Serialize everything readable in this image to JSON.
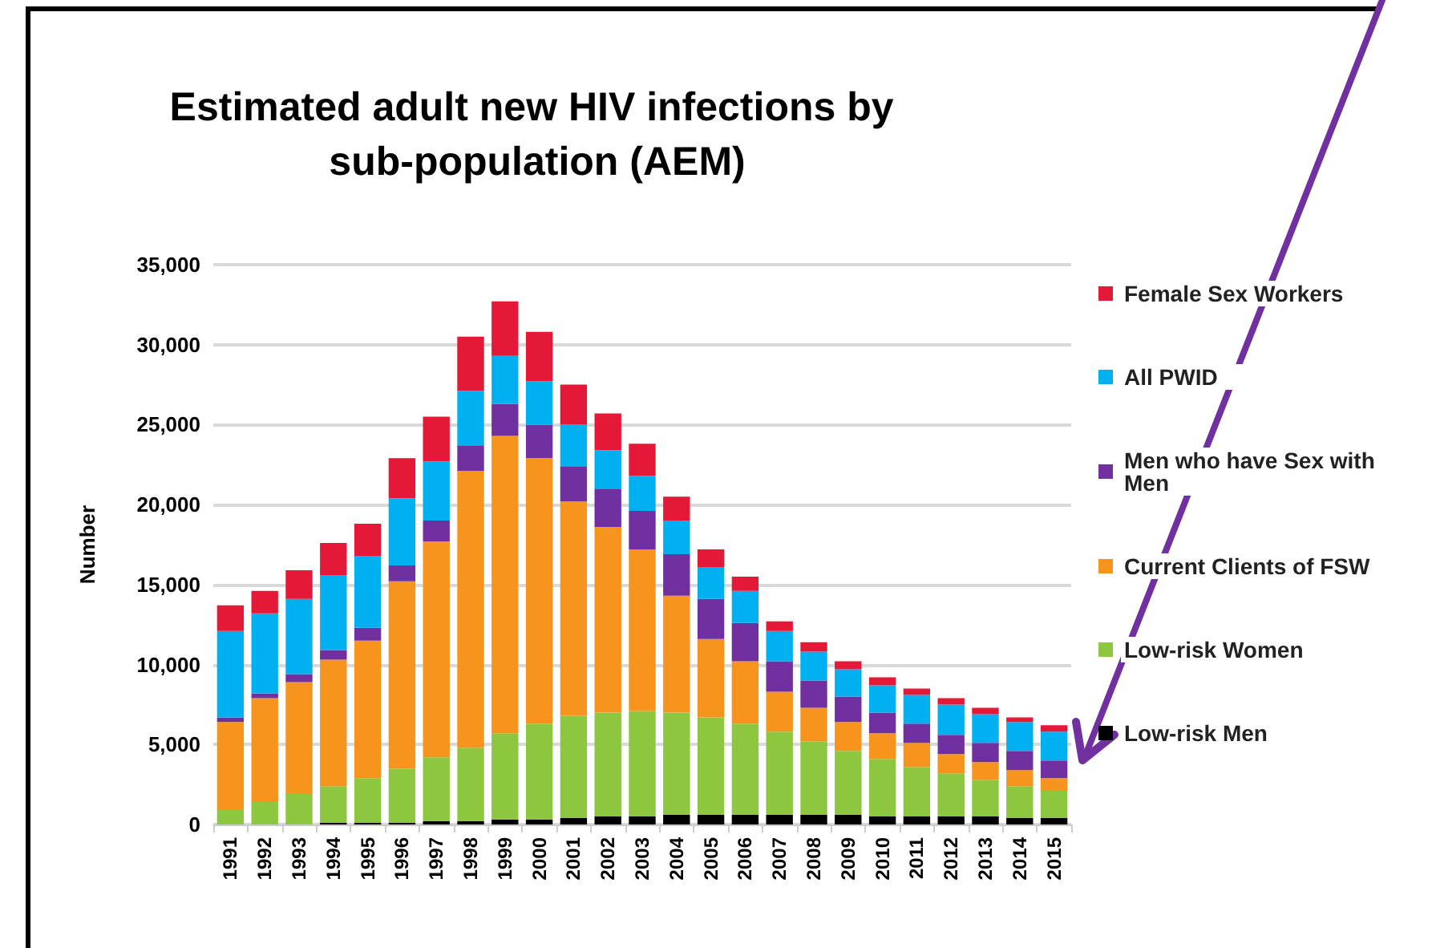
{
  "chart_data": {
    "type": "bar",
    "stacked": true,
    "title": "Estimated adult new HIV infections by sub-population (AEM)",
    "ylabel": "Number",
    "categories": [
      "1991",
      "1992",
      "1993",
      "1994",
      "1995",
      "1996",
      "1997",
      "1998",
      "1999",
      "2000",
      "2001",
      "2002",
      "2003",
      "2004",
      "2005",
      "2006",
      "2007",
      "2008",
      "2009",
      "2010",
      "2011",
      "2012",
      "2013",
      "2014",
      "2015"
    ],
    "series": [
      {
        "name": "Low-risk Men",
        "color": "#000000",
        "values": [
          0,
          0,
          0,
          100,
          100,
          100,
          200,
          200,
          300,
          300,
          400,
          500,
          500,
          600,
          600,
          600,
          600,
          600,
          600,
          500,
          500,
          500,
          500,
          400,
          400
        ]
      },
      {
        "name": "Low-risk Women",
        "color": "#8dc63f",
        "values": [
          900,
          1400,
          1900,
          2300,
          2800,
          3400,
          4000,
          4600,
          5400,
          6000,
          6400,
          6500,
          6600,
          6400,
          6100,
          5700,
          5200,
          4600,
          4000,
          3600,
          3100,
          2700,
          2300,
          2000,
          1700
        ]
      },
      {
        "name": "Current Clients of FSW",
        "color": "#f7941d",
        "values": [
          5500,
          6500,
          7000,
          7900,
          8600,
          11700,
          13500,
          17300,
          18600,
          16600,
          13400,
          11600,
          10100,
          7300,
          4900,
          3900,
          2500,
          2100,
          1800,
          1600,
          1500,
          1200,
          1100,
          1000,
          800
        ]
      },
      {
        "name": "Men who have Sex with Men",
        "color": "#7030a0",
        "values": [
          300,
          300,
          500,
          600,
          800,
          1000,
          1300,
          1600,
          2000,
          2100,
          2200,
          2400,
          2400,
          2600,
          2500,
          2400,
          1900,
          1700,
          1600,
          1300,
          1200,
          1200,
          1200,
          1200,
          1100
        ]
      },
      {
        "name": "All PWID",
        "color": "#00b0f0",
        "values": [
          5400,
          5000,
          4700,
          4700,
          4500,
          4200,
          3700,
          3400,
          3000,
          2700,
          2600,
          2400,
          2200,
          2100,
          2000,
          2000,
          1900,
          1800,
          1700,
          1700,
          1800,
          1900,
          1800,
          1800,
          1800
        ]
      },
      {
        "name": "Female Sex Workers",
        "color": "#e31937",
        "values": [
          1600,
          1400,
          1800,
          2000,
          2000,
          2500,
          2800,
          3400,
          3400,
          3100,
          2500,
          2300,
          2000,
          1500,
          1100,
          900,
          600,
          600,
          500,
          500,
          400,
          400,
          400,
          300,
          400
        ]
      }
    ],
    "ylim": [
      0,
      35000
    ],
    "yticks": [
      0,
      {
        "value": 5000,
        "label": "5,000"
      },
      {
        "value": 10000,
        "label": "10,000"
      },
      {
        "value": 15000,
        "label": "15,000"
      },
      {
        "value": 20000,
        "label": "20,000"
      },
      {
        "value": 25000,
        "label": "25,000"
      },
      {
        "value": 30000,
        "label": "30,000"
      },
      {
        "value": 35000,
        "label": "35,000"
      }
    ],
    "grid": "y",
    "legend": "right"
  }
}
